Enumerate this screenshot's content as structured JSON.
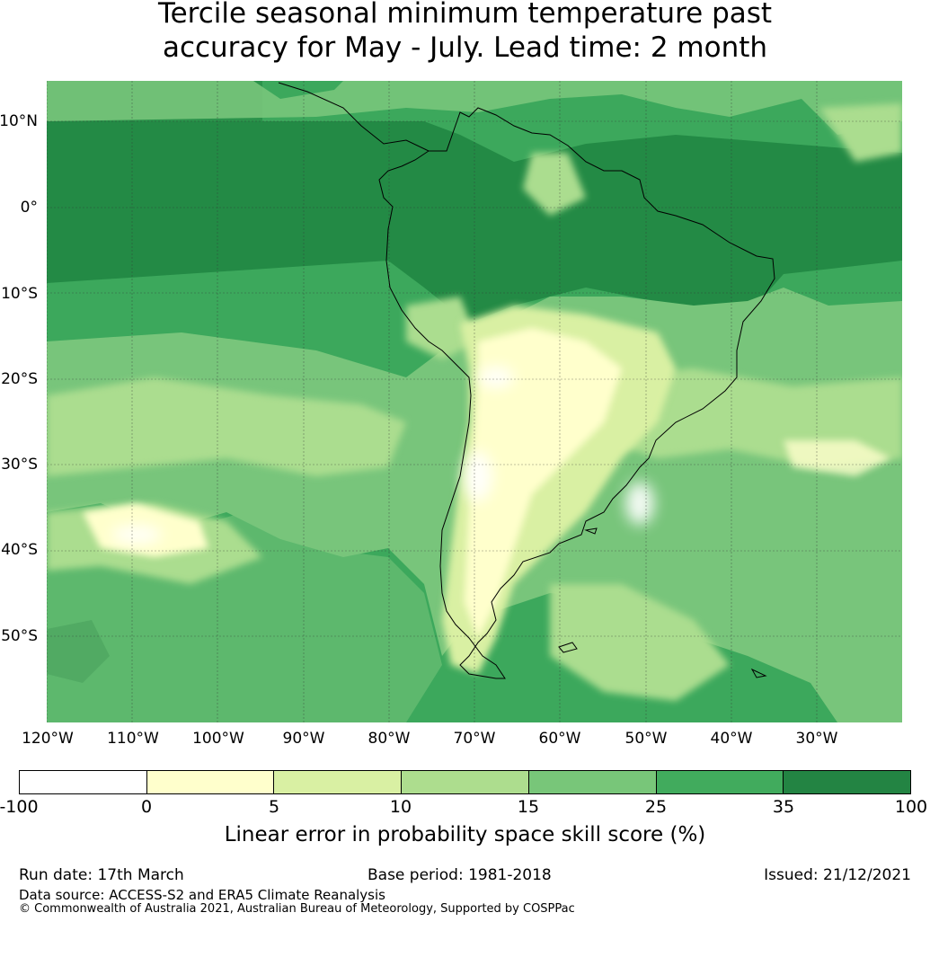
{
  "title": {
    "line1": "Tercile seasonal minimum temperature past",
    "line2": "accuracy for May - July. Lead time: 2 month"
  },
  "map": {
    "lat_labels": [
      "10°N",
      "0°",
      "10°S",
      "20°S",
      "30°S",
      "40°S",
      "50°S"
    ],
    "lon_labels": [
      "120°W",
      "110°W",
      "100°W",
      "90°W",
      "80°W",
      "70°W",
      "60°W",
      "50°W",
      "40°W",
      "30°W"
    ],
    "colors": {
      "ocean_base": "#3ca85c",
      "dark": "#238a45",
      "mid": "#78c57b",
      "light": "#abdd8f",
      "pale": "#d9f0a3",
      "cream": "#ffffcc",
      "white": "#ffffff",
      "coast": "#000000"
    }
  },
  "colorbar": {
    "ticks": [
      "-100",
      "0",
      "5",
      "10",
      "15",
      "25",
      "35",
      "100"
    ],
    "colors": [
      "#ffffff",
      "#ffffcc",
      "#d9f0a3",
      "#addd8e",
      "#78c679",
      "#41ab5d",
      "#238443"
    ],
    "label": "Linear error in probability space skill score (%)"
  },
  "footer": {
    "run_date": "Run date: 17th March",
    "base_period": "Base period: 1981-2018",
    "issued": "Issued: 21/12/2021",
    "data_source": "Data source: ACCESS-S2 and ERA5 Climate Reanalysis",
    "copyright": "© Commonwealth of Australia 2021, Australian Bureau of Meteorology, Supported by COSPPac"
  }
}
